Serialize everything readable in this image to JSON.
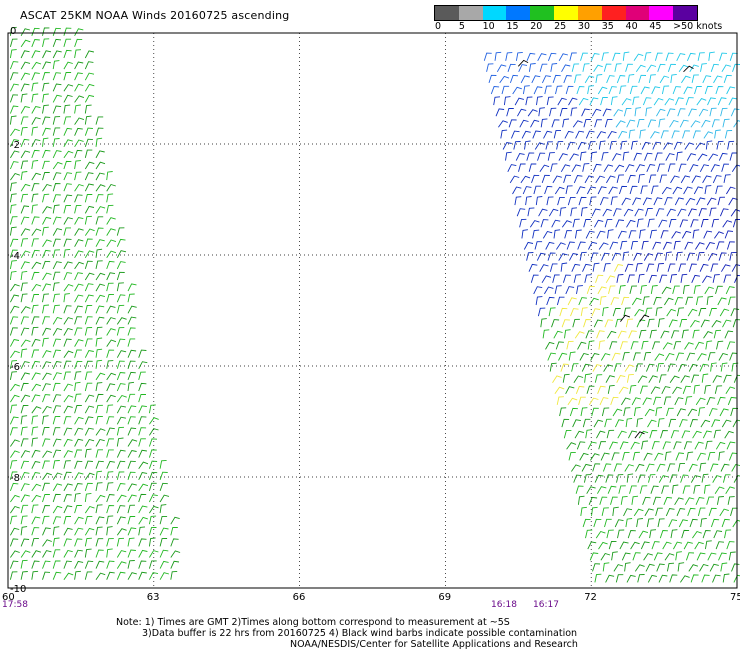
{
  "title": "ASCAT 25KM NOAA Winds 20160725 ascending",
  "legend": {
    "labels": [
      "0",
      "5",
      "10",
      "15",
      "20",
      "25",
      "30",
      "35",
      "40",
      "45",
      ">50 knots"
    ],
    "colors": [
      "#5a5a5a",
      "#a8a8a8",
      "#00d8ff",
      "#0078ff",
      "#20c020",
      "#ffff00",
      "#ffa000",
      "#ff2020",
      "#e00078",
      "#ff00ff",
      "#5a00a0"
    ]
  },
  "chart_data": {
    "type": "scatter",
    "x_ticks": [
      "60",
      "63",
      "66",
      "69",
      "72",
      "75"
    ],
    "y_ticks": [
      "0",
      "-2",
      "-4",
      "-6",
      "-8",
      "-10"
    ],
    "xlim": [
      60,
      75
    ],
    "ylim": [
      -10,
      0
    ],
    "grid": true,
    "swaths": [
      {
        "name": "west swath",
        "lon_range_top": [
          60,
          61.5
        ],
        "lon_range_bottom": [
          60,
          63.6
        ],
        "wind_knots": [
          15,
          20
        ],
        "color": "#20a020"
      },
      {
        "name": "east swath",
        "lon_range_top": [
          69.8,
          75
        ],
        "lon_range_bottom": [
          72.1,
          75
        ],
        "wind_knots": [
          5,
          25
        ],
        "regions": [
          "cyan 5-10 north",
          "blue 10-15 mid",
          "green 15-20 south",
          "yellow 20-25 center"
        ]
      }
    ],
    "times": [
      {
        "label": "17:58",
        "lon": 60
      },
      {
        "label": "16:18",
        "lon": 70.8
      },
      {
        "label": "16:17",
        "lon": 71.9
      }
    ]
  },
  "notes": {
    "line1": "Note: 1) Times are GMT 2)Times along bottom correspond to measurement at ~5S",
    "line2": "3)Data buffer is 22 hrs from 20160725 4) Black wind barbs indicate possible contamination",
    "line3": "NOAA/NESDIS/Center for Satellite Applications and Research"
  }
}
